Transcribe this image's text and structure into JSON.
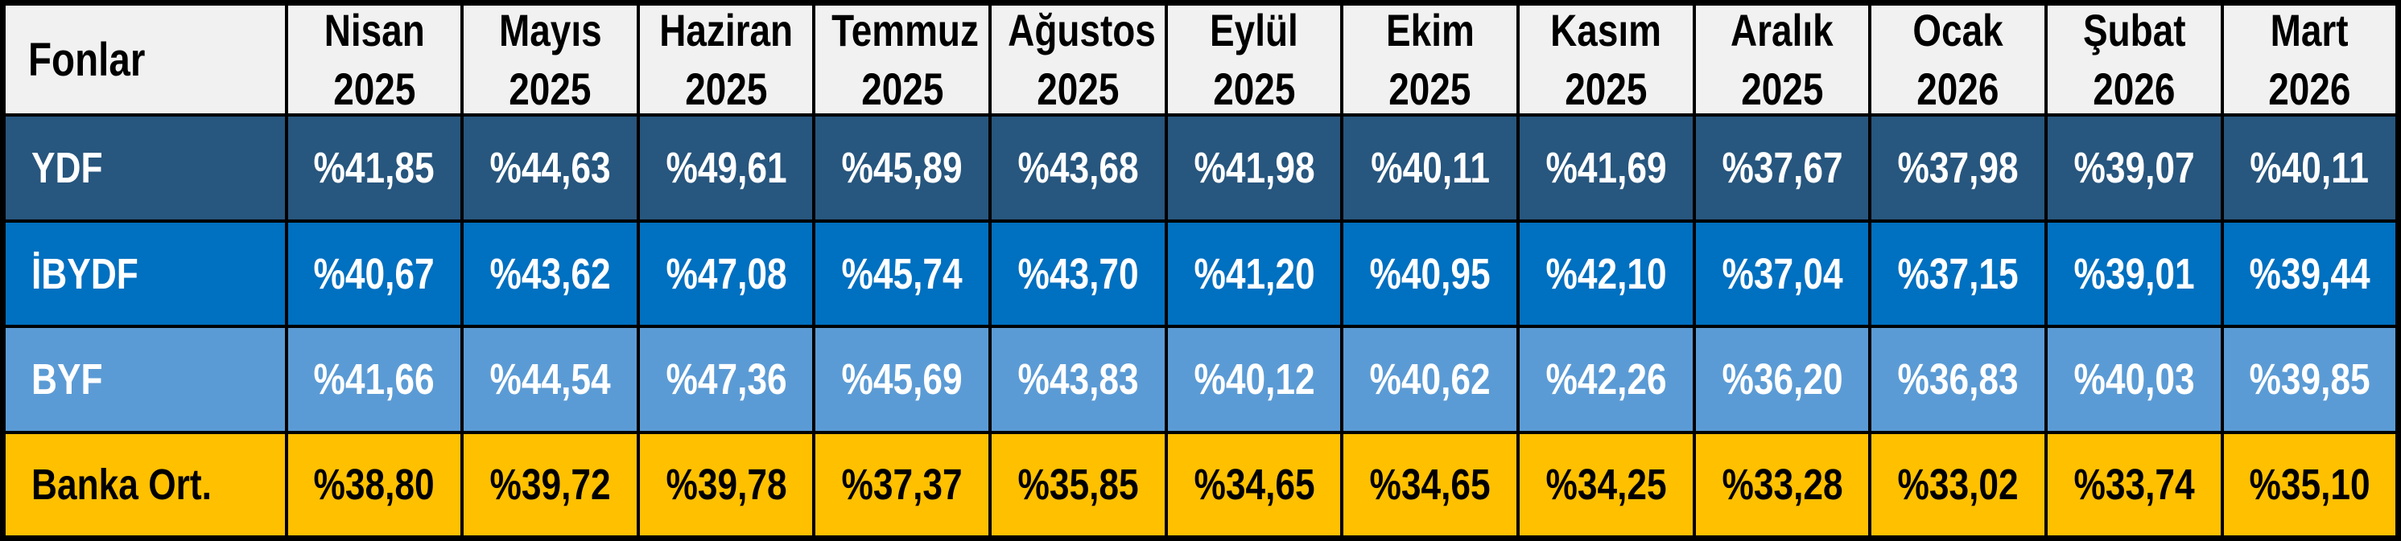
{
  "colors": {
    "header_bg": "#F1F1F1",
    "header_fg": "#000000",
    "border": "#000000",
    "ydf_bg": "#27567E",
    "ibydf_bg": "#0070C0",
    "byf_bg": "#5B9BD5",
    "banka_bg": "#FFC000",
    "light_text": "#FFFFFF",
    "dark_text": "#000000"
  },
  "table": {
    "header": {
      "fonlar": "Fonlar",
      "columns": [
        {
          "month": "Nisan",
          "year": "2025"
        },
        {
          "month": "Mayıs",
          "year": "2025"
        },
        {
          "month": "Haziran",
          "year": "2025"
        },
        {
          "month": "Temmuz",
          "year": "2025"
        },
        {
          "month": "Ağustos",
          "year": "2025"
        },
        {
          "month": "Eylül",
          "year": "2025"
        },
        {
          "month": "Ekim",
          "year": "2025"
        },
        {
          "month": "Kasım",
          "year": "2025"
        },
        {
          "month": "Aralık",
          "year": "2025"
        },
        {
          "month": "Ocak",
          "year": "2026"
        },
        {
          "month": "Şubat",
          "year": "2026"
        },
        {
          "month": "Mart",
          "year": "2026"
        }
      ]
    },
    "rows": [
      {
        "label": "YDF",
        "bg": "#27567E",
        "fg": "#FFFFFF",
        "values": [
          "%41,85",
          "%44,63",
          "%49,61",
          "%45,89",
          "%43,68",
          "%41,98",
          "%40,11",
          "%41,69",
          "%37,67",
          "%37,98",
          "%39,07",
          "%40,11"
        ]
      },
      {
        "label": "İBYDF",
        "bg": "#0070C0",
        "fg": "#FFFFFF",
        "values": [
          "%40,67",
          "%43,62",
          "%47,08",
          "%45,74",
          "%43,70",
          "%41,20",
          "%40,95",
          "%42,10",
          "%37,04",
          "%37,15",
          "%39,01",
          "%39,44"
        ]
      },
      {
        "label": "BYF",
        "bg": "#5B9BD5",
        "fg": "#FFFFFF",
        "values": [
          "%41,66",
          "%44,54",
          "%47,36",
          "%45,69",
          "%43,83",
          "%40,12",
          "%40,62",
          "%42,26",
          "%36,20",
          "%36,83",
          "%40,03",
          "%39,85"
        ]
      },
      {
        "label": "Banka Ort.",
        "bg": "#FFC000",
        "fg": "#000000",
        "values": [
          "%38,80",
          "%39,72",
          "%39,78",
          "%37,37",
          "%35,85",
          "%34,65",
          "%34,65",
          "%34,25",
          "%33,28",
          "%33,02",
          "%33,74",
          "%35,10"
        ]
      }
    ]
  },
  "chart_data": {
    "type": "table",
    "title": "Fonlar",
    "categories": [
      "Nisan 2025",
      "Mayıs 2025",
      "Haziran 2025",
      "Temmuz 2025",
      "Ağustos 2025",
      "Eylül 2025",
      "Ekim 2025",
      "Kasım 2025",
      "Aralık 2025",
      "Ocak 2026",
      "Şubat 2026",
      "Mart 2026"
    ],
    "value_format": "Turkish percent notation, e.g. %41,85",
    "series": [
      {
        "name": "YDF",
        "values": [
          41.85,
          44.63,
          49.61,
          45.89,
          43.68,
          41.98,
          40.11,
          41.69,
          37.67,
          37.98,
          39.07,
          40.11
        ]
      },
      {
        "name": "İBYDF",
        "values": [
          40.67,
          43.62,
          47.08,
          45.74,
          43.7,
          41.2,
          40.95,
          42.1,
          37.04,
          37.15,
          39.01,
          39.44
        ]
      },
      {
        "name": "BYF",
        "values": [
          41.66,
          44.54,
          47.36,
          45.69,
          43.83,
          40.12,
          40.62,
          42.26,
          36.2,
          36.83,
          40.03,
          39.85
        ]
      },
      {
        "name": "Banka Ort.",
        "values": [
          38.8,
          39.72,
          39.78,
          37.37,
          35.85,
          34.65,
          34.65,
          34.25,
          33.28,
          33.02,
          33.74,
          35.1
        ]
      }
    ]
  }
}
